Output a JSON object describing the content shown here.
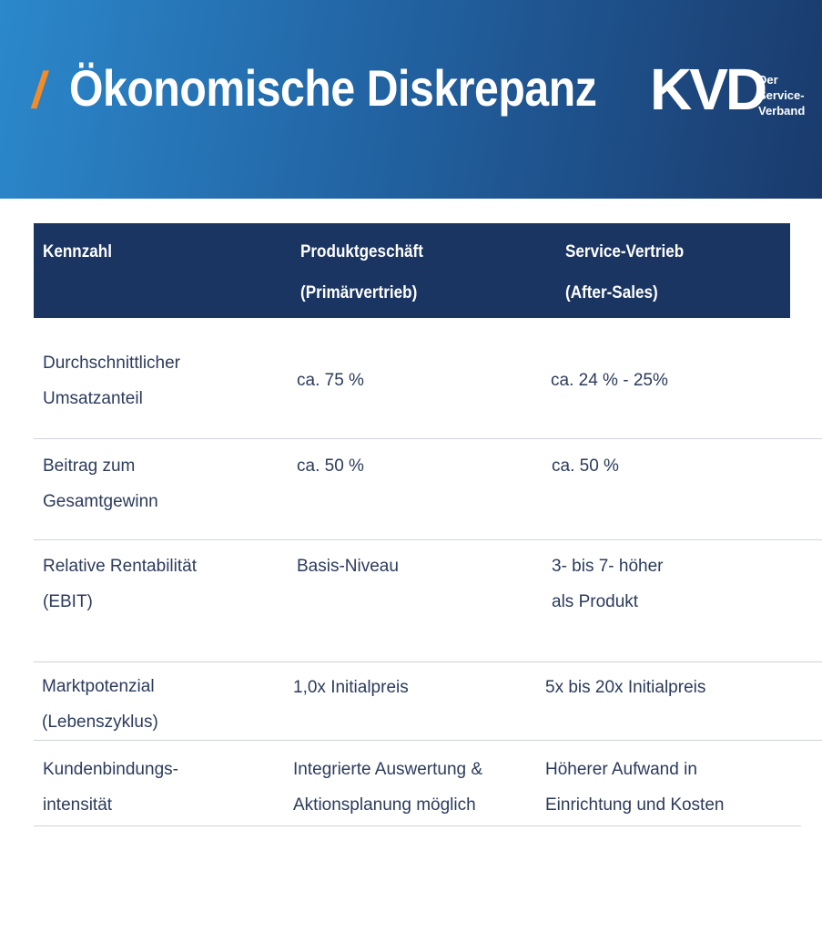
{
  "header": {
    "marker": "/",
    "title": "Ökonomische Diskrepanz",
    "logo": {
      "text": "KVD",
      "tagline": [
        "Der",
        "Service-",
        "Verband"
      ]
    }
  },
  "table": {
    "columns": [
      [
        "Kennzahl"
      ],
      [
        "Produktgeschäft",
        "(Primärvertrieb)"
      ],
      [
        "Service-Vertrieb",
        "(After-Sales)"
      ]
    ],
    "rows": [
      [
        [
          "Durchschnittlicher",
          "Umsatzanteil"
        ],
        [
          "ca. 75 %"
        ],
        [
          "ca. 24 % - 25%"
        ]
      ],
      [
        [
          "Beitrag zum",
          "Gesamtgewinn"
        ],
        [
          "ca. 50 %"
        ],
        [
          "ca. 50 %"
        ]
      ],
      [
        [
          "Relative Rentabilität",
          "(EBIT)"
        ],
        [
          "Basis-Niveau"
        ],
        [
          "3- bis 7- höher",
          "als Produkt"
        ]
      ],
      [
        [
          "Marktpotenzial",
          "(Lebenszyklus)"
        ],
        [
          "1,0x Initialpreis"
        ],
        [
          "5x bis 20x Initialpreis"
        ]
      ],
      [
        [
          "Kundenbindungs-",
          "intensität"
        ],
        [
          "Integrierte Auswertung &",
          "Aktionsplanung möglich"
        ],
        [
          "Höherer Aufwand in",
          "Einrichtung und Kosten"
        ]
      ]
    ]
  }
}
